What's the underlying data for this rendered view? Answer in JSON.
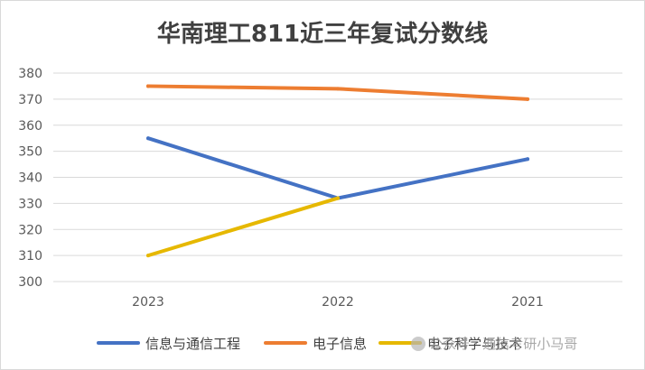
{
  "chart_data": {
    "type": "line",
    "title": "华南理工811近三年复试分数线",
    "categories": [
      "2023",
      "2022",
      "2021"
    ],
    "ylim": [
      300,
      380
    ],
    "yticks": [
      300,
      310,
      320,
      330,
      340,
      350,
      360,
      370,
      380
    ],
    "grid": true,
    "legend_position": "bottom",
    "series": [
      {
        "name": "信息与通信工程",
        "values": [
          355,
          332,
          347
        ],
        "color": "#4472C4"
      },
      {
        "name": "电子信息",
        "values": [
          375,
          374,
          370
        ],
        "color": "#ED7D31"
      },
      {
        "name": "电子科学与技术",
        "values": [
          310,
          332,
          null
        ],
        "color": "#E6B800"
      }
    ]
  },
  "watermark": "公众号 · 通信考研小马哥"
}
